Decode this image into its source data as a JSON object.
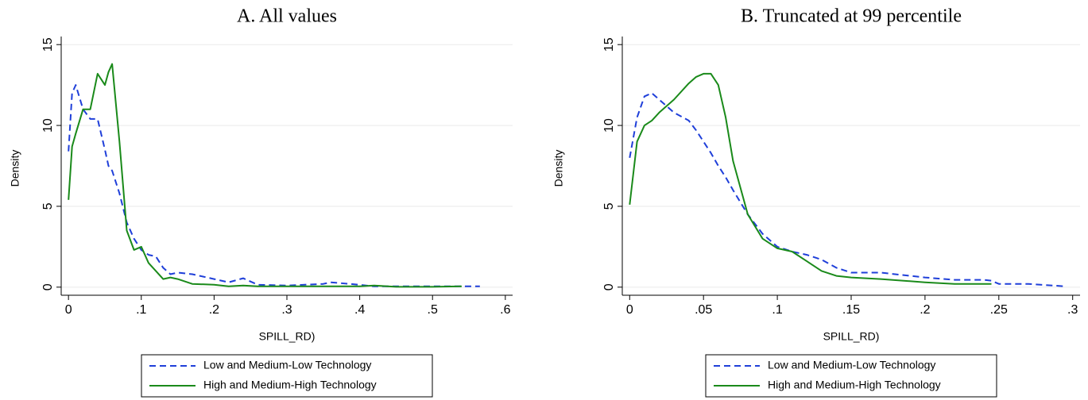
{
  "chart_data": [
    {
      "type": "line",
      "title": "A. All values",
      "xlabel": "SPILL_RD)",
      "ylabel": "Density",
      "x": [
        0,
        0.005,
        0.01,
        0.02,
        0.03,
        0.04,
        0.05,
        0.055,
        0.06,
        0.07,
        0.08,
        0.09,
        0.1,
        0.11,
        0.12,
        0.13,
        0.14,
        0.15,
        0.17,
        0.2,
        0.22,
        0.24,
        0.26,
        0.3,
        0.35,
        0.36,
        0.4,
        0.42,
        0.45,
        0.5,
        0.54,
        0.565
      ],
      "series": [
        {
          "name": "Low and Medium-Low Technology",
          "color": "#1f3fd9",
          "dashed": true,
          "values": [
            8.4,
            12,
            12.5,
            11,
            10.4,
            10.4,
            8.5,
            7.5,
            7.2,
            5.8,
            4,
            3,
            2.3,
            2,
            1.9,
            1.2,
            0.8,
            0.9,
            0.8,
            0.5,
            0.3,
            0.55,
            0.15,
            0.1,
            0.2,
            0.3,
            0.15,
            0.05,
            0.05,
            0.05,
            0.05,
            0.05
          ]
        },
        {
          "name": "High and Medium-High Technology",
          "color": "#1a8a1a",
          "dashed": false,
          "values": [
            5.4,
            8.7,
            9.5,
            11,
            11,
            13.2,
            12.5,
            13.3,
            13.8,
            9,
            3.5,
            2.3,
            2.5,
            1.5,
            1,
            0.5,
            0.6,
            0.5,
            0.2,
            0.15,
            0.05,
            0.1,
            0.05,
            0.05,
            0.05,
            0.05,
            0.05,
            0.1,
            0.02,
            0.02,
            0.05,
            null
          ]
        }
      ],
      "xlim": [
        -0.01,
        0.61
      ],
      "ylim": [
        -0.5,
        15.5
      ],
      "xticks": [
        0,
        {
          "value": 0.1,
          "label": ".1"
        },
        {
          "value": 0.2,
          "label": ".2"
        },
        {
          "value": 0.3,
          "label": ".3"
        },
        {
          "value": 0.4,
          "label": ".4"
        },
        {
          "value": 0.5,
          "label": ".5"
        },
        {
          "value": 0.6,
          "label": ".6"
        }
      ],
      "yticks": [
        0,
        5,
        10,
        15
      ],
      "grid": true,
      "legend": "bottom"
    },
    {
      "type": "line",
      "title": "B. Truncated at 99 percentile",
      "xlabel": "SPILL_RD)",
      "ylabel": "Density",
      "x": [
        0,
        0.005,
        0.01,
        0.015,
        0.02,
        0.03,
        0.04,
        0.045,
        0.05,
        0.055,
        0.06,
        0.065,
        0.07,
        0.08,
        0.09,
        0.1,
        0.11,
        0.12,
        0.13,
        0.14,
        0.15,
        0.17,
        0.2,
        0.22,
        0.24,
        0.245,
        0.25,
        0.27,
        0.295
      ],
      "series": [
        {
          "name": "Low and Medium-Low Technology",
          "color": "#1f3fd9",
          "dashed": true,
          "values": [
            8,
            10.5,
            11.8,
            12,
            11.6,
            10.8,
            10.3,
            9.7,
            9,
            8.3,
            7.5,
            6.8,
            6,
            4.5,
            3.3,
            2.5,
            2.2,
            2,
            1.7,
            1.2,
            0.9,
            0.9,
            0.6,
            0.45,
            0.45,
            0.4,
            0.2,
            0.2,
            0.05
          ]
        },
        {
          "name": "High and Medium-High Technology",
          "color": "#1a8a1a",
          "dashed": false,
          "values": [
            5.1,
            9,
            10,
            10.3,
            10.8,
            11.6,
            12.6,
            13,
            13.2,
            13.2,
            12.5,
            10.5,
            7.8,
            4.5,
            3,
            2.4,
            2.2,
            1.6,
            1,
            0.7,
            0.6,
            0.5,
            0.3,
            0.2,
            0.2,
            0.2,
            null,
            null,
            null
          ]
        }
      ],
      "xlim": [
        -0.005,
        0.305
      ],
      "ylim": [
        -0.5,
        15.5
      ],
      "xticks": [
        0,
        {
          "value": 0.05,
          "label": ".05"
        },
        {
          "value": 0.1,
          "label": ".1"
        },
        {
          "value": 0.15,
          "label": ".15"
        },
        {
          "value": 0.2,
          "label": ".2"
        },
        {
          "value": 0.25,
          "label": ".25"
        },
        {
          "value": 0.3,
          "label": ".3"
        }
      ],
      "yticks": [
        0,
        5,
        10,
        15
      ],
      "grid": true,
      "legend": "bottom"
    }
  ]
}
